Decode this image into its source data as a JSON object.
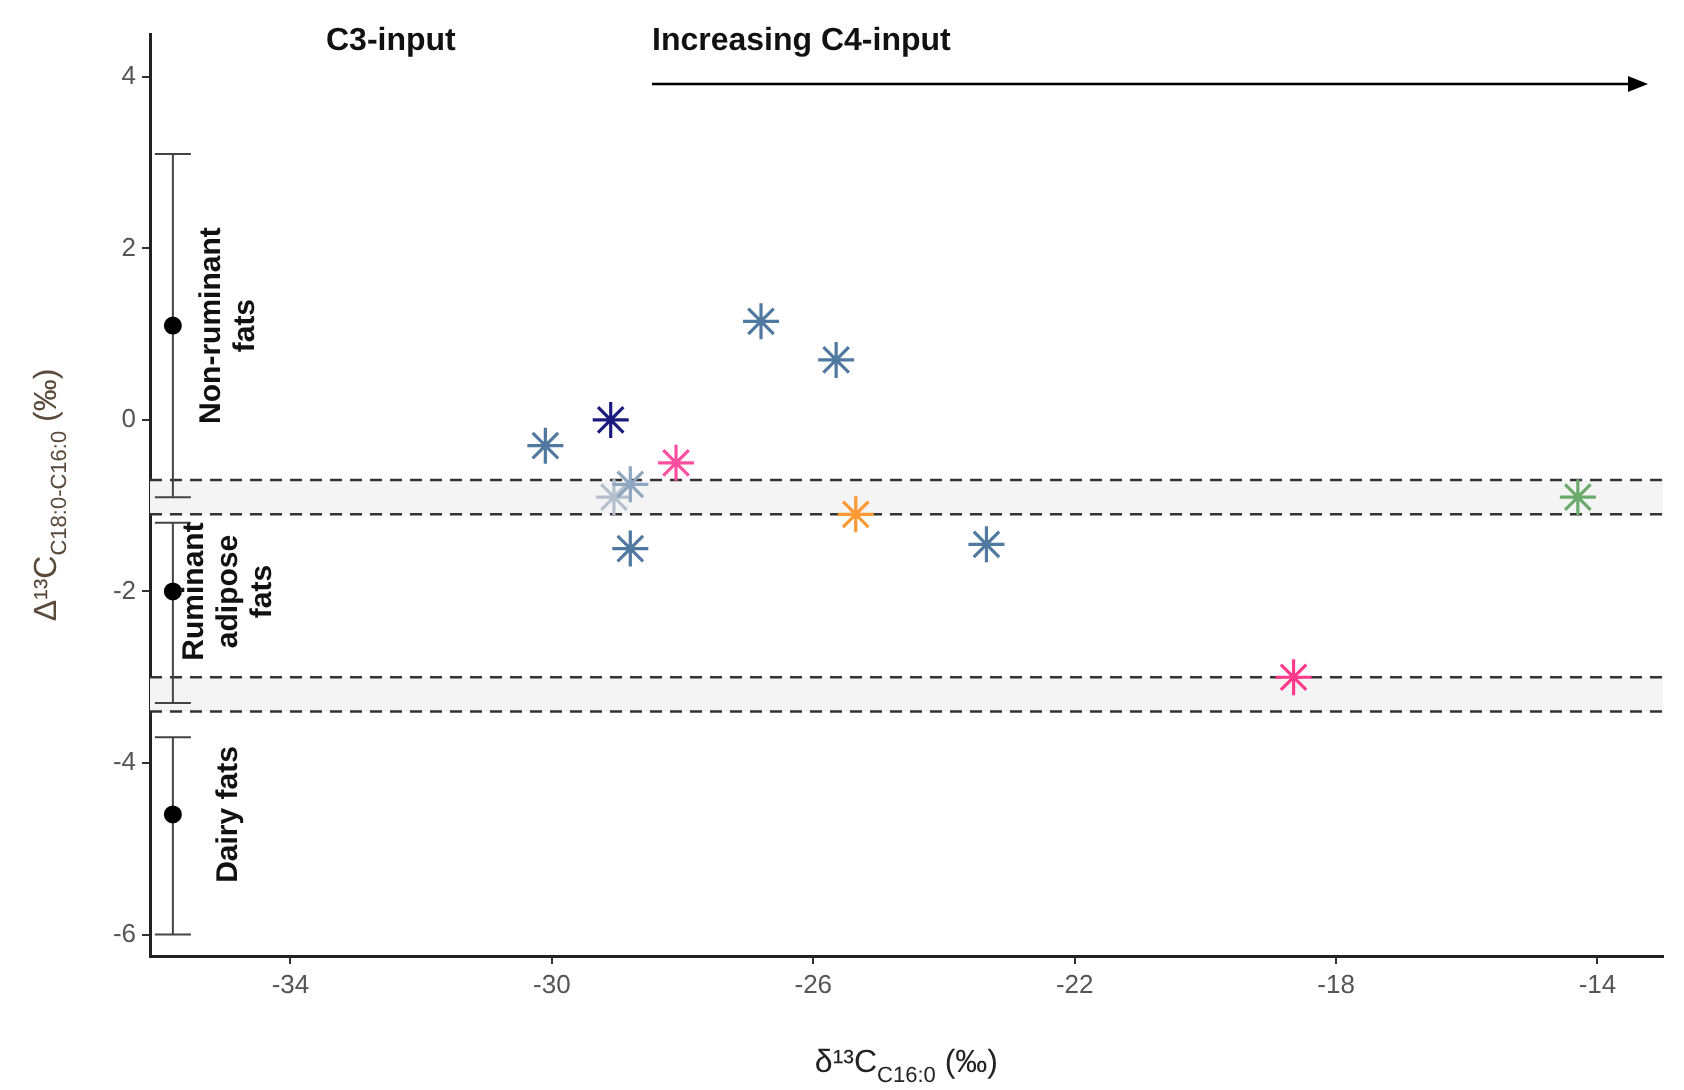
{
  "chart_data": {
    "type": "scatter",
    "xlabel": "δ¹³C$_{C16:0}$ (‰)",
    "ylabel": "Δ¹³C$_{C18:0-C16:0}$ (‰)",
    "xlim": [
      -36.15,
      -13.0
    ],
    "xticks": [
      -34,
      -30,
      -26,
      -22,
      -18,
      -14
    ],
    "ylim": [
      -6.25,
      4.5
    ],
    "yticks": [
      -6,
      -4,
      -2,
      0,
      2,
      4
    ],
    "grid": false,
    "legend": false,
    "marker": "cross",
    "series": [
      {
        "color": "#4f79a0",
        "x": [
          -30.1,
          -26.8,
          -25.65,
          -28.8,
          -23.35
        ],
        "values": [
          -0.3,
          1.15,
          0.7,
          -1.5,
          -1.45
        ]
      },
      {
        "color": "#1c1c80",
        "x": [
          -29.1
        ],
        "values": [
          0.0
        ]
      },
      {
        "color": "#ff4fa0",
        "x": [
          -28.1
        ],
        "values": [
          -0.5
        ]
      },
      {
        "color": "#8ea6c0",
        "x": [
          -28.8
        ],
        "values": [
          -0.75
        ]
      },
      {
        "color": "#b4c0cc",
        "x": [
          -29.05
        ],
        "values": [
          -0.9
        ]
      },
      {
        "color": "#ff9933",
        "x": [
          -25.35
        ],
        "values": [
          -1.1
        ]
      },
      {
        "color": "#ff3a8a",
        "x": [
          -18.65
        ],
        "values": [
          -3.0
        ]
      },
      {
        "color": "#6aaa6a",
        "x": [
          -14.3
        ],
        "values": [
          -0.9
        ]
      },
      {
        "color": "#000000",
        "marker": "circle",
        "x": [
          -35.8,
          -35.8,
          -35.8
        ],
        "values": [
          1.1,
          -2.0,
          -4.6
        ],
        "errors": [
          [
            -0.9,
            3.1
          ],
          [
            -3.3,
            -1.2
          ],
          [
            -6.0,
            -3.7
          ]
        ]
      }
    ],
    "bands": [
      {
        "axis": "y",
        "from": -1.1,
        "to": -0.7,
        "color": "#f4f4f4"
      },
      {
        "axis": "y",
        "from": -3.4,
        "to": -3.0,
        "color": "#f4f4f4"
      }
    ],
    "ref_lines": [
      {
        "axis": "y",
        "value": -0.7,
        "line_style": "dashed"
      },
      {
        "axis": "y",
        "value": -1.1,
        "line_style": "dashed"
      },
      {
        "axis": "y",
        "value": -3.0,
        "line_style": "dashed"
      },
      {
        "axis": "y",
        "value": -3.4,
        "line_style": "dashed"
      }
    ],
    "annotations": [
      "C3-input",
      "Increasing C4-input",
      "Non-ruminant fats",
      "Ruminant adipose fats",
      "Dairy fats"
    ]
  }
}
